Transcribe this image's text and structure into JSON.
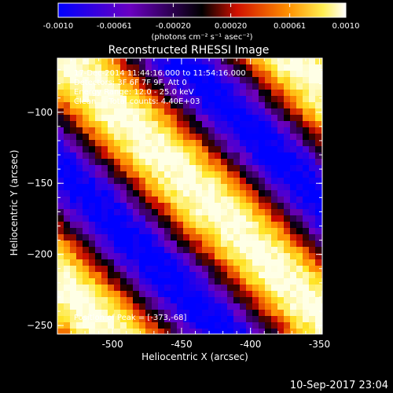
{
  "colorbar": {
    "ticks": [
      "-0.0010",
      "-0.00061",
      "-0.00020",
      "0.00020",
      "0.00061",
      "0.0010"
    ],
    "tick_values": [
      -0.001,
      -0.00061,
      -0.0002,
      0.0002,
      0.00061,
      0.001
    ],
    "range": [
      -0.001,
      0.001
    ],
    "unit_label": "(photons cm⁻² s⁻¹ asec⁻²)",
    "colors": [
      "#0000ff",
      "#7a00c8",
      "#000000",
      "#cc0000",
      "#ff8800",
      "#ffffff"
    ]
  },
  "chart_data": {
    "type": "heatmap",
    "title": "Reconstructed RHESSI Image",
    "xlabel": "Heliocentric X (arcsec)",
    "ylabel": "Heliocentric Y (arcsec)",
    "xlim": [
      -540,
      -348
    ],
    "ylim": [
      -256,
      -62
    ],
    "xticks": [
      -500,
      -450,
      -400,
      -350
    ],
    "xtick_labels": [
      "-500",
      "-450",
      "-400",
      "-350"
    ],
    "yticks": [
      -100,
      -150,
      -200,
      -250
    ],
    "ytick_labels": [
      "−100",
      "−150",
      "−200",
      "−250"
    ],
    "pattern": "diagonal stripes, bright band from upper-left to lower-right",
    "peak": [
      -373,
      -68
    ],
    "annotations": [
      "17-Dec-2014 11:44:16.000 to 11:54:16.000",
      "Detectors: 3F 6F 7F 9F, Att 0",
      "Energy Range: 12.0 - 25.0 keV",
      "Clean     Total counts: 4.40E+03"
    ],
    "peak_label": "Position of Peak = [-373,-68]"
  },
  "footer": {
    "timestamp": "10-Sep-2017 23:04"
  }
}
